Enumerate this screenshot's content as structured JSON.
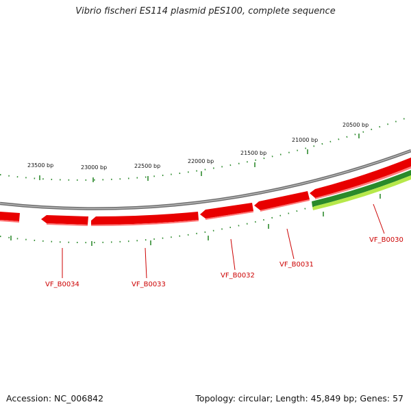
{
  "title": "Vibrio fischeri ES114 plasmid pES100, complete sequence",
  "footer": {
    "accession": "Accession: NC_006842",
    "summary": "Topology: circular; Length: 45,849 bp; Genes: 57"
  },
  "ruler_labels": [
    "23500 bp",
    "23000 bp",
    "22500 bp",
    "22000 bp",
    "21500 bp",
    "21000 bp",
    "20500 bp"
  ],
  "genes": [
    {
      "label": "VF_B0034"
    },
    {
      "label": "VF_B0033"
    },
    {
      "label": "VF_B0032"
    },
    {
      "label": "VF_B0031"
    },
    {
      "label": "VF_B0030"
    }
  ],
  "colors": {
    "gene_red": "#e80000",
    "gene_red_light": "#ff7a7a",
    "gene_green_dark": "#2a8a2a",
    "gene_green_light": "#b6e84a",
    "backbone": "#808080",
    "ruler": "#2e8b2e",
    "label": "#cc0000"
  }
}
